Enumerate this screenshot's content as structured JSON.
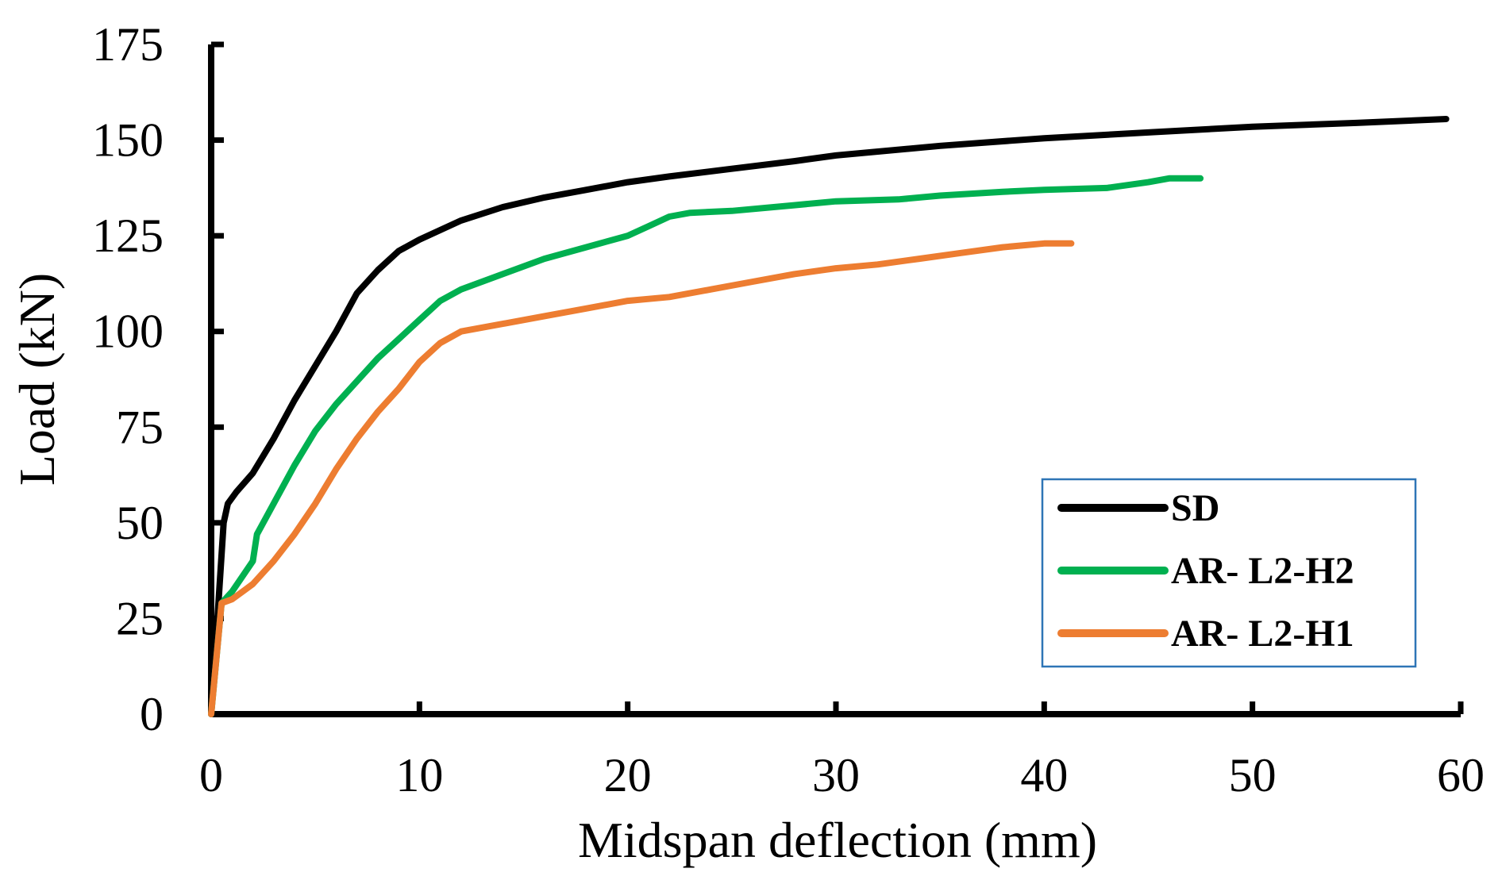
{
  "chart_data": {
    "type": "line",
    "title": "",
    "xlabel": "Midspan deflection (mm)",
    "ylabel": "Load (kN)",
    "xlim": [
      0,
      60
    ],
    "ylim": [
      0,
      175
    ],
    "xticks": [
      "0",
      "10",
      "20",
      "30",
      "40",
      "50",
      "60"
    ],
    "yticks": [
      "0",
      "25",
      "50",
      "75",
      "100",
      "125",
      "150",
      "175"
    ],
    "grid": false,
    "legend_position": "bottom-right",
    "series": [
      {
        "name": "SD",
        "color": "#000000",
        "points": [
          [
            0,
            0
          ],
          [
            0.3,
            25
          ],
          [
            0.6,
            50
          ],
          [
            0.8,
            55
          ],
          [
            1.2,
            58
          ],
          [
            2,
            63
          ],
          [
            3,
            72
          ],
          [
            4,
            82
          ],
          [
            5,
            91
          ],
          [
            6,
            100
          ],
          [
            7,
            110
          ],
          [
            8,
            116
          ],
          [
            9,
            121
          ],
          [
            10,
            124
          ],
          [
            12,
            129
          ],
          [
            14,
            132.5
          ],
          [
            16,
            135
          ],
          [
            18,
            137
          ],
          [
            20,
            139
          ],
          [
            22,
            140.5
          ],
          [
            25,
            142.5
          ],
          [
            28,
            144.5
          ],
          [
            30,
            146
          ],
          [
            35,
            148.5
          ],
          [
            40,
            150.5
          ],
          [
            45,
            152
          ],
          [
            50,
            153.5
          ],
          [
            55,
            154.5
          ],
          [
            59.3,
            155.5
          ]
        ]
      },
      {
        "name": "AR- L2-H2",
        "color": "#00b050",
        "points": [
          [
            0,
            0
          ],
          [
            0.5,
            29
          ],
          [
            1,
            32
          ],
          [
            1.5,
            36
          ],
          [
            2,
            40
          ],
          [
            2.2,
            47
          ],
          [
            3,
            55
          ],
          [
            4,
            65
          ],
          [
            5,
            74
          ],
          [
            6,
            81
          ],
          [
            7,
            87
          ],
          [
            8,
            93
          ],
          [
            9,
            98
          ],
          [
            10,
            103
          ],
          [
            11,
            108
          ],
          [
            12,
            111
          ],
          [
            14,
            115
          ],
          [
            16,
            119
          ],
          [
            18,
            122
          ],
          [
            20,
            125
          ],
          [
            21,
            127.5
          ],
          [
            22,
            130
          ],
          [
            23,
            131
          ],
          [
            25,
            131.5
          ],
          [
            28,
            133
          ],
          [
            30,
            134
          ],
          [
            33,
            134.5
          ],
          [
            35,
            135.5
          ],
          [
            38,
            136.5
          ],
          [
            40,
            137
          ],
          [
            43,
            137.5
          ],
          [
            45,
            139
          ],
          [
            46,
            140
          ],
          [
            47.5,
            140
          ]
        ]
      },
      {
        "name": "AR- L2-H1",
        "color": "#ed7d31",
        "points": [
          [
            0,
            0
          ],
          [
            0.5,
            29
          ],
          [
            1,
            30
          ],
          [
            1.5,
            32
          ],
          [
            2,
            34
          ],
          [
            3,
            40
          ],
          [
            4,
            47
          ],
          [
            5,
            55
          ],
          [
            6,
            64
          ],
          [
            7,
            72
          ],
          [
            8,
            79
          ],
          [
            9,
            85
          ],
          [
            10,
            92
          ],
          [
            11,
            97
          ],
          [
            12,
            100
          ],
          [
            14,
            102
          ],
          [
            16,
            104
          ],
          [
            18,
            106
          ],
          [
            20,
            108
          ],
          [
            22,
            109
          ],
          [
            24,
            111
          ],
          [
            26,
            113
          ],
          [
            28,
            115
          ],
          [
            30,
            116.5
          ],
          [
            32,
            117.5
          ],
          [
            34,
            119
          ],
          [
            36,
            120.5
          ],
          [
            38,
            122
          ],
          [
            40,
            123
          ],
          [
            41.3,
            123
          ]
        ]
      }
    ]
  }
}
